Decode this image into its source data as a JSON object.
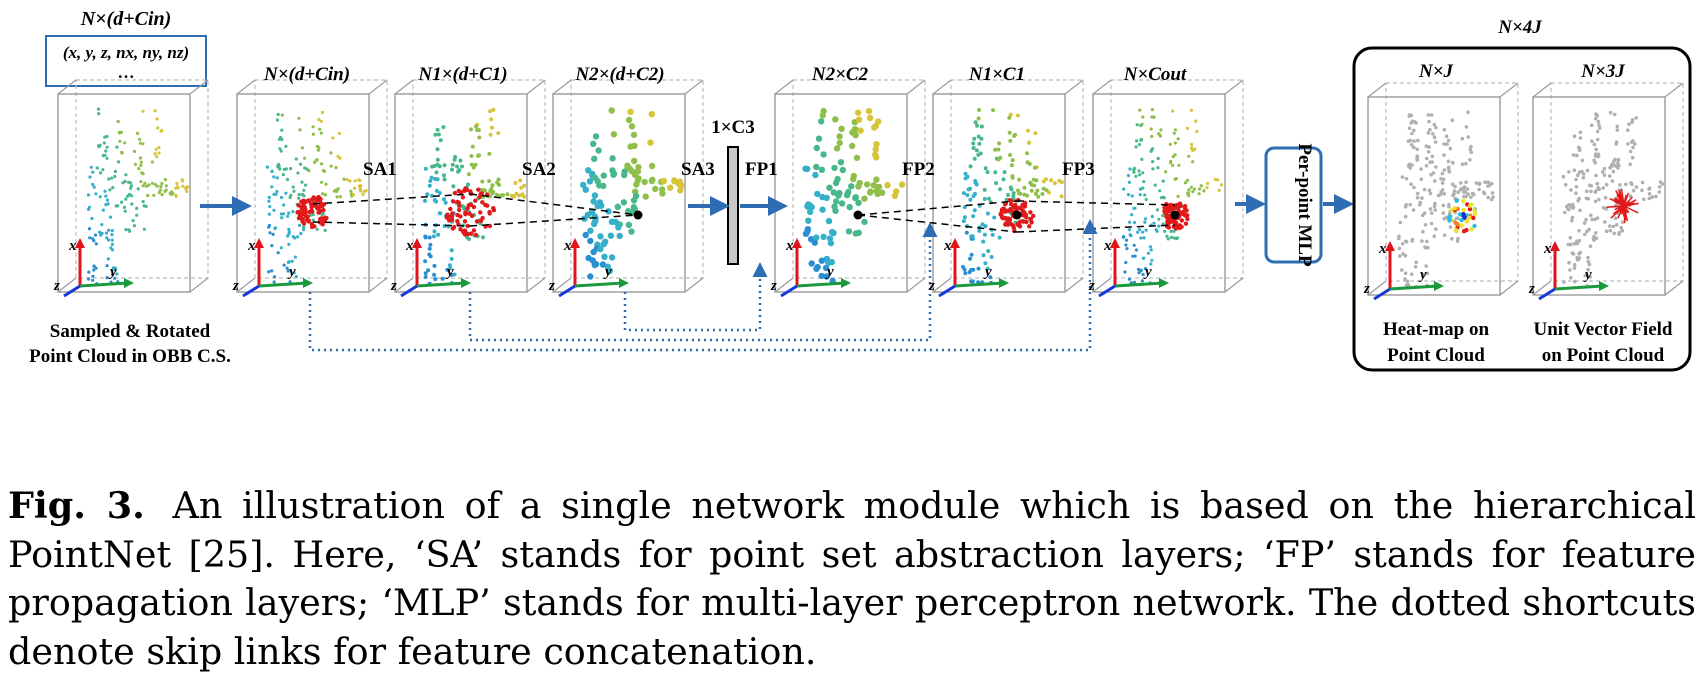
{
  "input": {
    "dims_label": "N×(d+Cin)",
    "features_label": "(x, y, z, nx, ny, nz)",
    "ellipsis": "…",
    "caption_line1": "Sampled & Rotated",
    "caption_line2": "Point Cloud in OBB C.S."
  },
  "stage_dims": [
    "N×(d+Cin)",
    "N1×(d+C1)",
    "N2×(d+C2)",
    "N2×C2",
    "N1×C1",
    "N×Cout"
  ],
  "layers": [
    "SA1",
    "SA2",
    "SA3",
    "FP1",
    "FP2",
    "FP3"
  ],
  "bottleneck_label": "1×C3",
  "mlp_label": "Per-point MLP",
  "output": {
    "title": "N×4J",
    "heatmap_dims": "N×J",
    "vector_dims": "N×3J",
    "heatmap_line1": "Heat-map on",
    "heatmap_line2": "Point Cloud",
    "vector_line1": "Unit Vector Field",
    "vector_line2": "on Point Cloud"
  },
  "axis_labels": {
    "x": "x",
    "y": "y",
    "z": "z"
  },
  "colors": {
    "arrow": "#2e6db4",
    "skip": "#2e6db4",
    "axis_x": "#e0141a",
    "axis_y": "#1a9a3c",
    "axis_z": "#1838d8",
    "receptive": "#e01a1a",
    "gray_points": "#b0b0b0"
  },
  "caption": {
    "label": "Fig. 3.",
    "text": "An illustration of a single network module which is based on the hierarchical PointNet [25]. Here, ‘SA’ stands for point set abstraction layers; ‘FP’ stands for feature propagation layers; ‘MLP’ stands for multi-layer perceptron network. The dotted shortcuts denote skip links for feature concatenation."
  }
}
